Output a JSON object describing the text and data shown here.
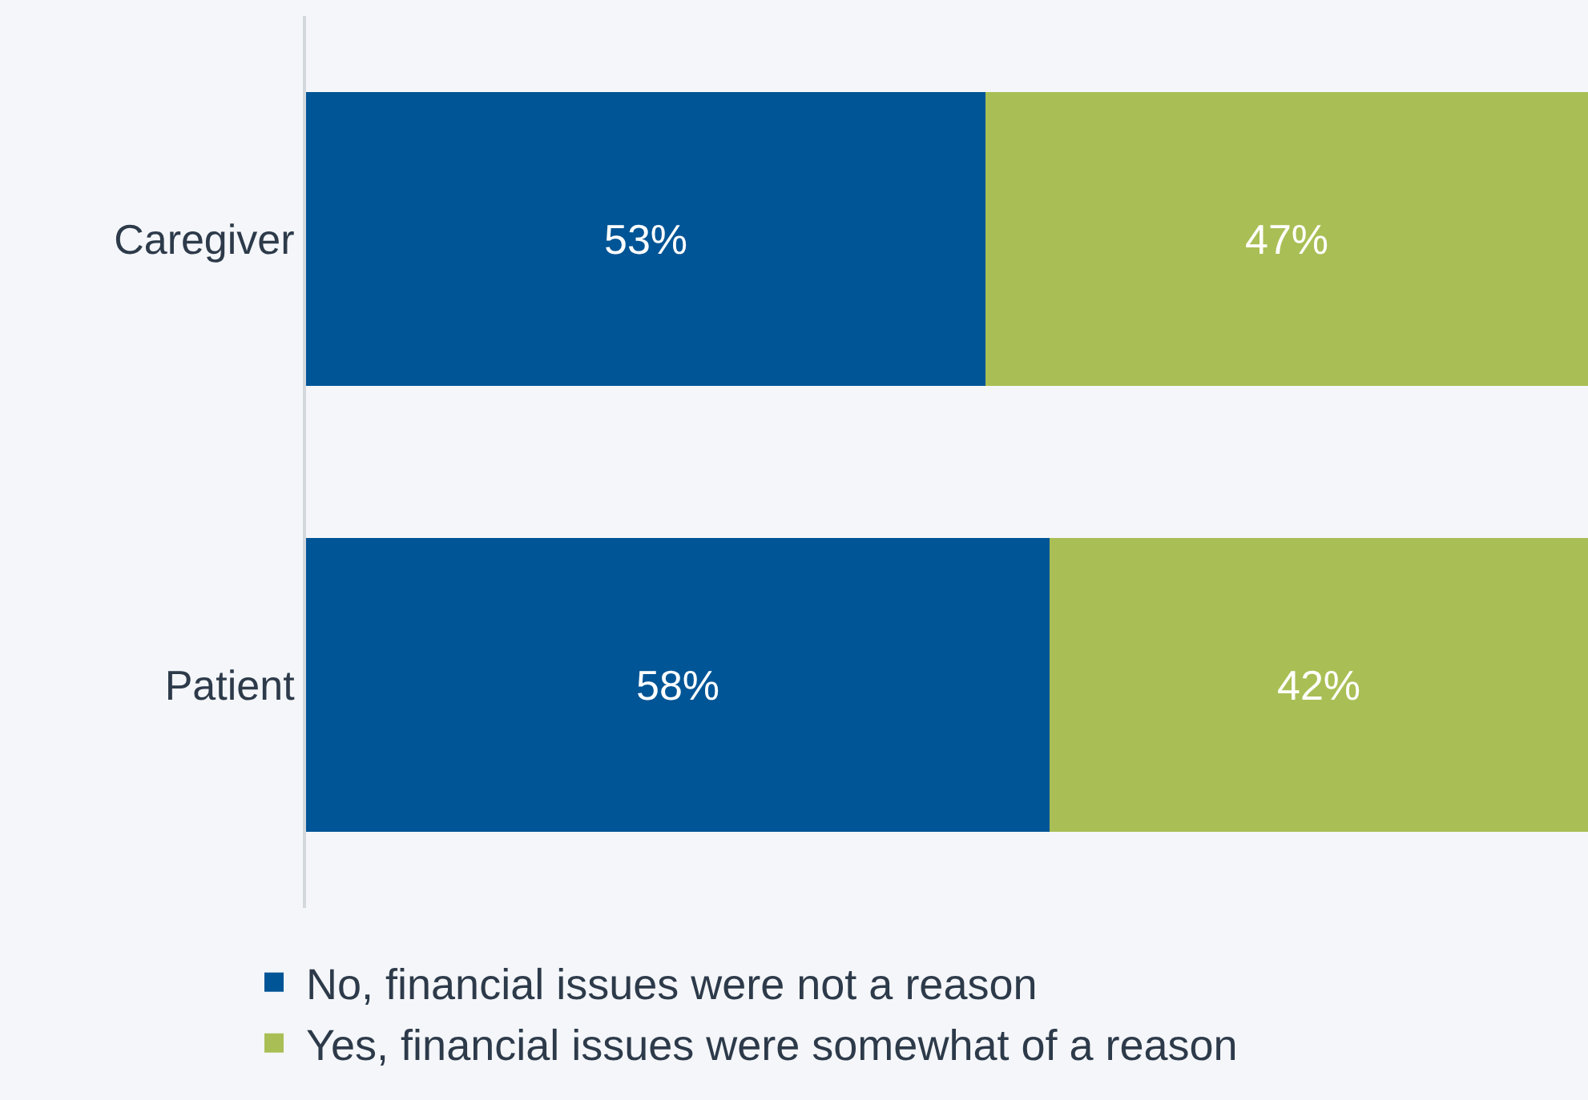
{
  "chart_data": {
    "type": "bar",
    "orientation": "horizontal",
    "stacked": true,
    "categories": [
      "Caregiver",
      "Patient"
    ],
    "series": [
      {
        "name": "No, financial issues were not a reason",
        "color": "#005596",
        "values": [
          53,
          58
        ],
        "value_labels": [
          "53%",
          "58%"
        ]
      },
      {
        "name": "Yes, financial issues were somewhat of a reason",
        "color": "#a9bf55",
        "values": [
          47,
          42
        ],
        "value_labels": [
          "47%",
          "42%"
        ]
      }
    ],
    "xlim": [
      0,
      100
    ],
    "tick_labels": "y",
    "grid": false,
    "legend": "bottom"
  }
}
